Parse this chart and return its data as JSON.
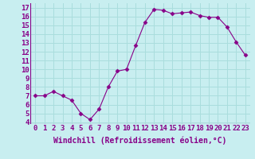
{
  "x": [
    0,
    1,
    2,
    3,
    4,
    5,
    6,
    7,
    8,
    9,
    10,
    11,
    12,
    13,
    14,
    15,
    16,
    17,
    18,
    19,
    20,
    21,
    22,
    23
  ],
  "y": [
    7.0,
    7.0,
    7.5,
    7.0,
    6.5,
    5.0,
    4.3,
    5.5,
    8.0,
    9.8,
    10.0,
    12.7,
    15.3,
    16.8,
    16.7,
    16.3,
    16.4,
    16.5,
    16.1,
    15.9,
    15.9,
    14.8,
    13.1,
    11.6
  ],
  "line_color": "#880088",
  "marker": "D",
  "marker_size": 2.5,
  "background_color": "#c8eef0",
  "grid_color": "#aadddd",
  "xlabel": "Windchill (Refroidissement éolien,°C)",
  "xlabel_fontsize": 7,
  "ylabel_ticks": [
    4,
    5,
    6,
    7,
    8,
    9,
    10,
    11,
    12,
    13,
    14,
    15,
    16,
    17
  ],
  "ylim": [
    3.8,
    17.5
  ],
  "xlim": [
    -0.5,
    23.5
  ],
  "xtick_labels": [
    "0",
    "1",
    "2",
    "3",
    "4",
    "5",
    "6",
    "7",
    "8",
    "9",
    "10",
    "11",
    "12",
    "13",
    "14",
    "15",
    "16",
    "17",
    "18",
    "19",
    "20",
    "21",
    "22",
    "23"
  ],
  "tick_fontsize": 6.5
}
